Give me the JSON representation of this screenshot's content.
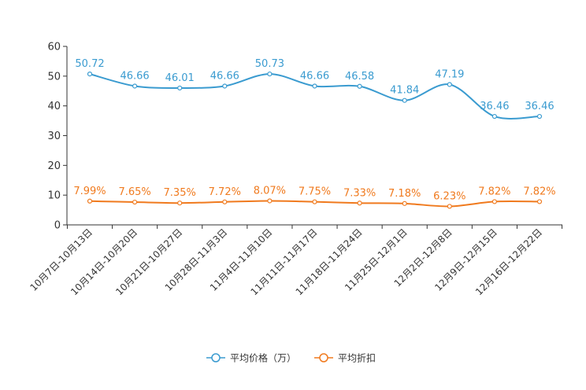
{
  "chart_data": {
    "type": "line",
    "title": "",
    "xlabel": "",
    "ylabel": "",
    "ylim": [
      0,
      60
    ],
    "yticks": [
      0,
      10,
      20,
      30,
      40,
      50,
      60
    ],
    "grid": false,
    "legend_position": "bottom-center",
    "categories": [
      "10月7日-10月13日",
      "10月14日-10月20日",
      "10月21日-10月27日",
      "10月28日-11月3日",
      "11月4日-11月10日",
      "11月11日-11月17日",
      "11月18日-11月24日",
      "11月25日-12月1日",
      "12月2日-12月8日",
      "12月9日-12月15日",
      "12月16日-12月22日"
    ],
    "series": [
      {
        "name": "平均价格（万）",
        "color": "#3a9bd0",
        "values": [
          50.72,
          46.66,
          46.01,
          46.66,
          50.73,
          46.66,
          46.58,
          41.84,
          47.19,
          36.46,
          36.46
        ],
        "labels": [
          "50.72",
          "46.66",
          "46.01",
          "46.66",
          "50.73",
          "46.66",
          "46.58",
          "41.84",
          "47.19",
          "36.46",
          "36.46"
        ]
      },
      {
        "name": "平均折扣",
        "color": "#f07a1e",
        "values": [
          7.99,
          7.65,
          7.35,
          7.72,
          8.07,
          7.75,
          7.33,
          7.18,
          6.23,
          7.82,
          7.82
        ],
        "labels": [
          "7.99%",
          "7.65%",
          "7.35%",
          "7.72%",
          "8.07%",
          "7.75%",
          "7.33%",
          "7.18%",
          "6.23%",
          "7.82%",
          "7.82%"
        ]
      }
    ]
  }
}
